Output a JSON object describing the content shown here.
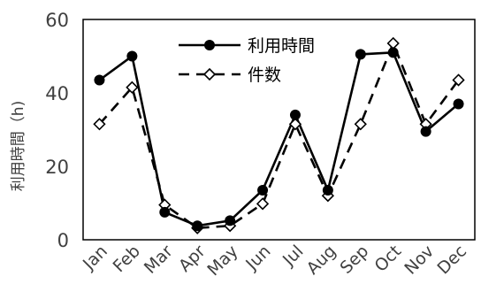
{
  "chart_data": {
    "type": "line",
    "categories": [
      "Jan",
      "Feb",
      "Mar",
      "Apr",
      "May",
      "Jun",
      "Jul",
      "Aug",
      "Sep",
      "Oct",
      "Nov",
      "Dec"
    ],
    "series": [
      {
        "name": "利用時間",
        "values": [
          43.5,
          50,
          7.5,
          3.8,
          5.2,
          13.5,
          34,
          13.5,
          50.5,
          51,
          29.5,
          37
        ],
        "style": "solid",
        "marker": "filled-circle",
        "color": "#000000"
      },
      {
        "name": "件数",
        "values": [
          31.5,
          41.5,
          9.5,
          3.2,
          3.8,
          9.8,
          31.5,
          12,
          31.5,
          53.5,
          31.5,
          43.5
        ],
        "style": "dashed",
        "marker": "open-diamond",
        "color": "#000000"
      }
    ],
    "ylabel": "利用時間（h)",
    "xlabel": "",
    "ylim": [
      0,
      60
    ],
    "yticks": [
      0,
      20,
      40,
      60
    ],
    "grid": false,
    "legend_position": "top-center"
  }
}
